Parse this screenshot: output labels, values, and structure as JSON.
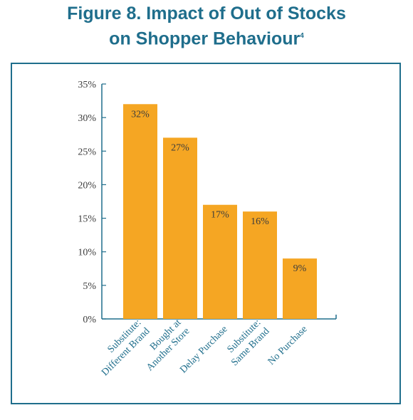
{
  "title": {
    "line1": "Figure 8. Impact of Out of Stocks",
    "line2": "on Shopper Behaviour",
    "superscript": "4"
  },
  "colors": {
    "title": "#1f6e8c",
    "bar": "#f5a623",
    "axis": "#1f6e8c",
    "frame": "#1f6e8c",
    "text": "#3c3c3c"
  },
  "chart_data": {
    "type": "bar",
    "categories": [
      [
        "Substitute:",
        "Different Brand"
      ],
      [
        "Bought at",
        "Another Store"
      ],
      [
        "Delay Purchase"
      ],
      [
        "Substitute:",
        "Same Brand"
      ],
      [
        "No Purchase"
      ]
    ],
    "values": [
      32,
      27,
      17,
      16,
      9
    ],
    "data_labels": [
      "32%",
      "27%",
      "17%",
      "16%",
      "9%"
    ],
    "ylim": [
      0,
      35
    ],
    "yticks": [
      0,
      5,
      10,
      15,
      20,
      25,
      30,
      35
    ],
    "ytick_labels": [
      "0%",
      "5%",
      "10%",
      "15%",
      "20%",
      "25%",
      "30%",
      "35%"
    ],
    "grid": false,
    "legend": "none",
    "xlabel": "",
    "ylabel": ""
  }
}
